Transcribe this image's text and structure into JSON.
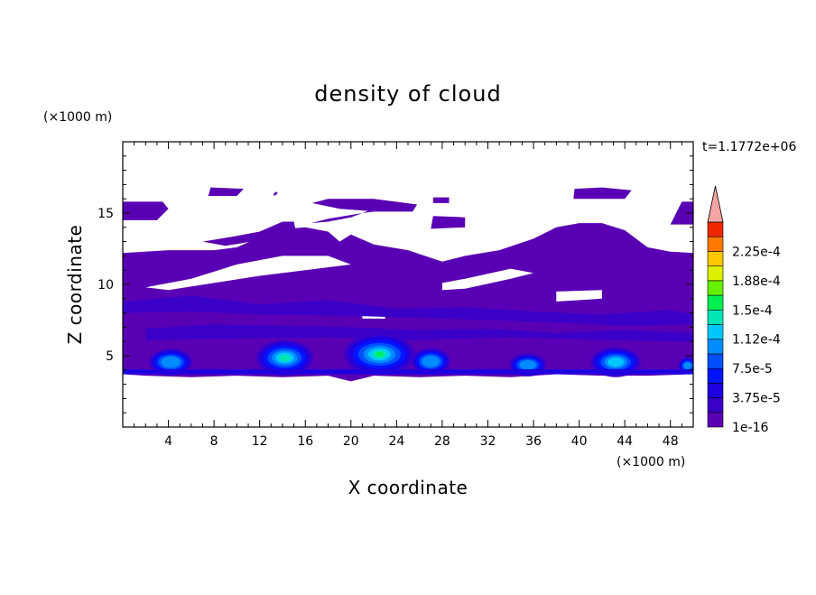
{
  "chart_data": {
    "type": "heatmap",
    "title": "density of cloud",
    "xlabel": "X coordinate",
    "ylabel": "Z coordinate",
    "x_unit": "(×1000 m)",
    "y_unit": "(×1000 m)",
    "time_label": "t=1.1772e+06",
    "xlim": [
      0,
      50
    ],
    "ylim": [
      0,
      20
    ],
    "x_ticks": [
      4,
      8,
      12,
      16,
      20,
      24,
      28,
      32,
      36,
      40,
      44,
      48
    ],
    "y_ticks": [
      5,
      10,
      15
    ],
    "colorbar": {
      "levels": [
        "1e-16",
        "",
        "3.75e-5",
        "",
        "7.5e-5",
        "",
        "1.12e-4",
        "",
        "1.5e-4",
        "",
        "1.88e-4",
        "",
        "2.25e-4",
        ""
      ],
      "colors": [
        "#5a00b4",
        "#3a00c8",
        "#1e00e0",
        "#0014ff",
        "#0050ff",
        "#008cff",
        "#00c8ff",
        "#00e6b4",
        "#00f050",
        "#64f000",
        "#dcf000",
        "#ffc800",
        "#ff7800",
        "#f02800"
      ],
      "extend_color": "#f4a4a4"
    },
    "cloud_layers": [
      {
        "name": "",
        "band": "upper-main",
        "density": "low"
      },
      {
        "name": "",
        "band": "low-convective",
        "density": "max ~1.12e-4 near x=22"
      }
    ]
  }
}
